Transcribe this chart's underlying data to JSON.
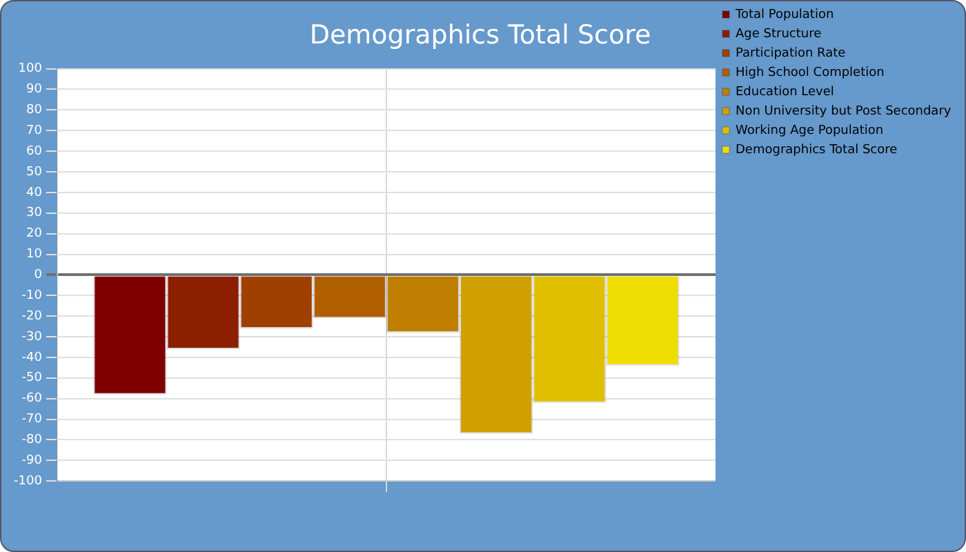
{
  "chart_data": {
    "type": "bar",
    "title": "Demographics Total Score",
    "categories": [
      null
    ],
    "series": [
      {
        "name": "Total Population",
        "color": "#800000",
        "values": [
          -58
        ]
      },
      {
        "name": "Age Structure",
        "color": "#8b1f00",
        "values": [
          -36
        ]
      },
      {
        "name": "Participation Rate",
        "color": "#a04000",
        "values": [
          -26
        ]
      },
      {
        "name": "High School Completion",
        "color": "#b05f00",
        "values": [
          -21
        ]
      },
      {
        "name": "Education Level",
        "color": "#c07f00",
        "values": [
          -28
        ]
      },
      {
        "name": "Non University but Post Secondary",
        "color": "#d09f00",
        "values": [
          -77
        ]
      },
      {
        "name": "Working Age Population",
        "color": "#e0bf00",
        "values": [
          -62
        ]
      },
      {
        "name": "Demographics Total Score",
        "color": "#eedd00",
        "values": [
          -44
        ]
      }
    ],
    "ylim": [
      -100,
      100
    ],
    "yticks": [
      -100,
      -90,
      -80,
      -70,
      -60,
      -50,
      -40,
      -30,
      -20,
      -10,
      0,
      10,
      20,
      30,
      40,
      50,
      60,
      70,
      80,
      90,
      100
    ],
    "grid": true,
    "legend": "right"
  }
}
